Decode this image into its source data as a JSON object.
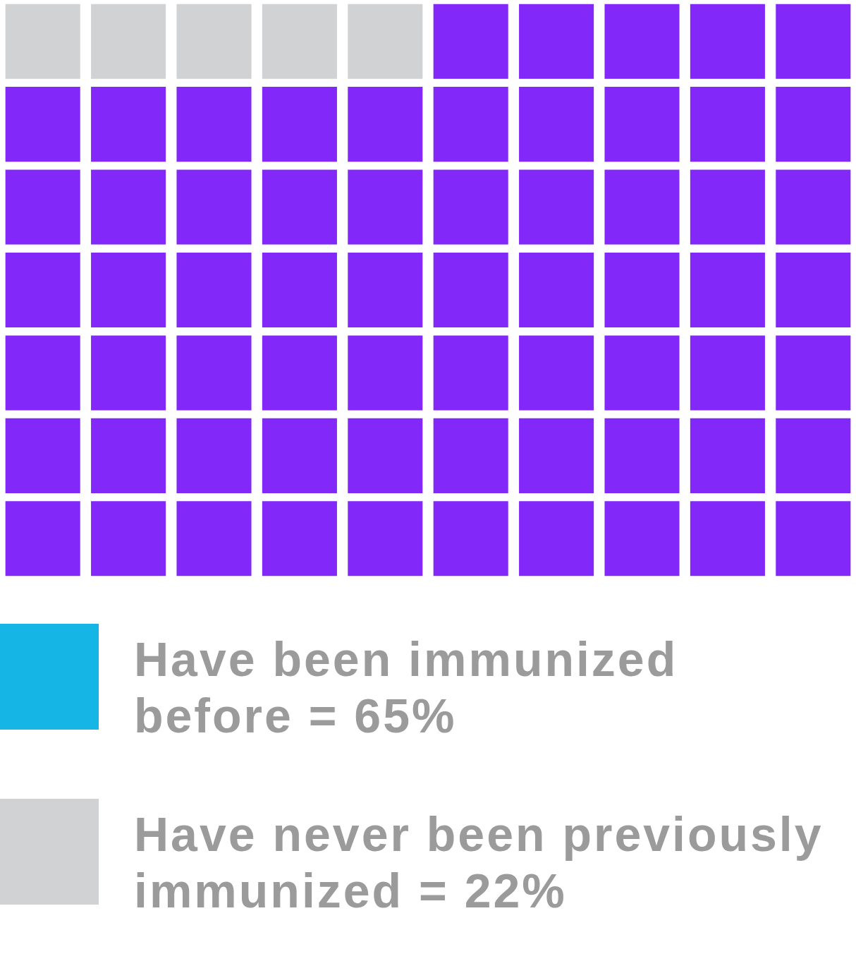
{
  "chart_data": {
    "type": "other",
    "categories": [
      "Have been immunized before",
      "Have never been previously immunized"
    ],
    "values": [
      65,
      22
    ],
    "value_labels": [
      "= 65%",
      "= 22%"
    ],
    "colors": [
      "#15b5e6",
      "#d1d2d4"
    ],
    "color": "#8229f9"
  }
}
